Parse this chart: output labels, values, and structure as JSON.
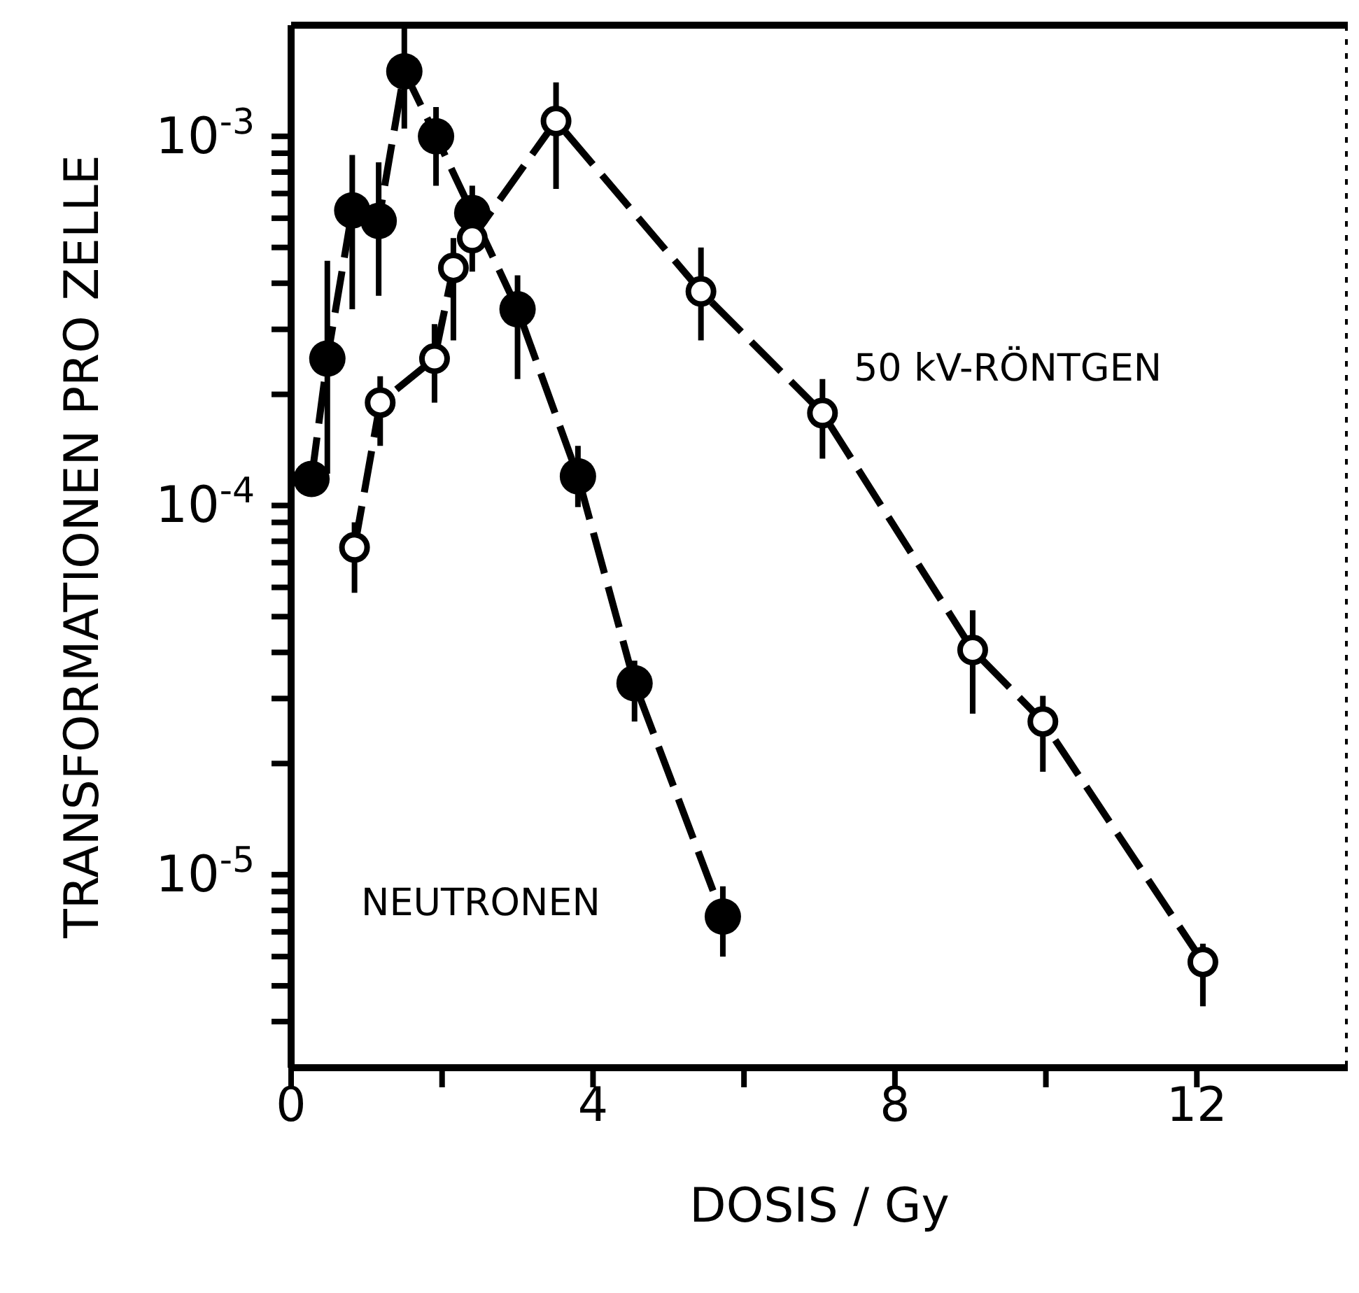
{
  "chart_data": {
    "type": "line",
    "xlabel": "DOSIS / Gy",
    "ylabel": "TRANSFORMATIONEN PRO ZELLE",
    "xlim": [
      0,
      14
    ],
    "xticks": [
      0,
      {
        "value": 2,
        "label": null
      },
      4,
      {
        "value": 6,
        "label": null
      },
      8,
      {
        "value": 10,
        "label": null
      },
      12
    ],
    "ylim": [
      3e-06,
      0.002
    ],
    "log": "y",
    "yticks": [
      {
        "value": 4e-06,
        "label": null
      },
      {
        "value": 5e-06,
        "label": null
      },
      {
        "value": 6e-06,
        "label": null
      },
      {
        "value": 7e-06,
        "label": null
      },
      {
        "value": 8e-06,
        "label": null
      },
      {
        "value": 9e-06,
        "label": null
      },
      {
        "value": 1e-05,
        "label": "10$^{-5}$"
      },
      {
        "value": 2e-05,
        "label": null
      },
      {
        "value": 3e-05,
        "label": null
      },
      {
        "value": 4e-05,
        "label": null
      },
      {
        "value": 5e-05,
        "label": null
      },
      {
        "value": 6e-05,
        "label": null
      },
      {
        "value": 7e-05,
        "label": null
      },
      {
        "value": 8e-05,
        "label": null
      },
      {
        "value": 9e-05,
        "label": null
      },
      {
        "value": 0.0001,
        "label": "10$^{-4}$"
      },
      {
        "value": 0.0002,
        "label": null
      },
      {
        "value": 0.0003,
        "label": null
      },
      {
        "value": 0.0004,
        "label": null
      },
      {
        "value": 0.0005,
        "label": null
      },
      {
        "value": 0.0006,
        "label": null
      },
      {
        "value": 0.0007,
        "label": null
      },
      {
        "value": 0.0008,
        "label": null
      },
      {
        "value": 0.0009,
        "label": null
      },
      {
        "value": 0.001,
        "label": "10$^{-3}$"
      }
    ],
    "legend": false,
    "marker": "circle",
    "line_style": "dashed",
    "series": [
      {
        "name": "NEUTRONEN",
        "color": "#000000",
        "x": [
          0.27,
          0.48,
          0.81,
          1.16,
          1.5,
          1.92,
          2.4,
          3.0,
          3.8,
          4.55,
          5.72
        ],
        "values": [
          0.000118,
          0.00025,
          0.00063,
          0.00059,
          0.0015,
          0.001,
          0.00062,
          0.00034,
          0.00012,
          3.3e-05,
          7.7e-06
        ],
        "errors": [
          null,
          [
            0.000122,
            0.00046
          ],
          [
            0.00034,
            0.00089
          ],
          [
            0.00037,
            0.00085
          ],
          [
            0.00105,
            0.00197
          ],
          [
            0.000735,
            0.0012
          ],
          [
            0.00055,
            0.000735
          ],
          [
            0.00022,
            0.00042
          ],
          [
            9.9e-05,
            0.000145
          ],
          [
            2.6e-05,
            3.8e-05
          ],
          [
            6e-06,
            9.3e-06
          ]
        ]
      },
      {
        "name": "50 kV-RÖNTGEN",
        "color": "#000000",
        "x": [
          0.84,
          1.18,
          1.9,
          2.15,
          2.4,
          3.51,
          5.43,
          7.04,
          9.03,
          9.96,
          12.08
        ],
        "values": [
          7.7e-05,
          0.00019,
          0.00025,
          0.00044,
          0.00053,
          0.0011,
          0.00038,
          0.000178,
          4.06e-05,
          2.6e-05,
          5.8e-06
        ],
        "errors": [
          [
            5.8e-05,
            9e-05
          ],
          [
            0.000145,
            0.000224
          ],
          [
            0.00019,
            0.00031
          ],
          [
            0.00028,
            0.00053
          ],
          [
            0.00043,
            0.00057
          ],
          [
            0.00072,
            0.0014
          ],
          [
            0.00028,
            0.0005
          ],
          [
            0.000134,
            0.00022
          ],
          [
            2.73e-05,
            5.2e-05
          ],
          [
            1.9e-05,
            3.05e-05
          ],
          [
            4.4e-06,
            6.5e-06
          ]
        ]
      }
    ]
  }
}
